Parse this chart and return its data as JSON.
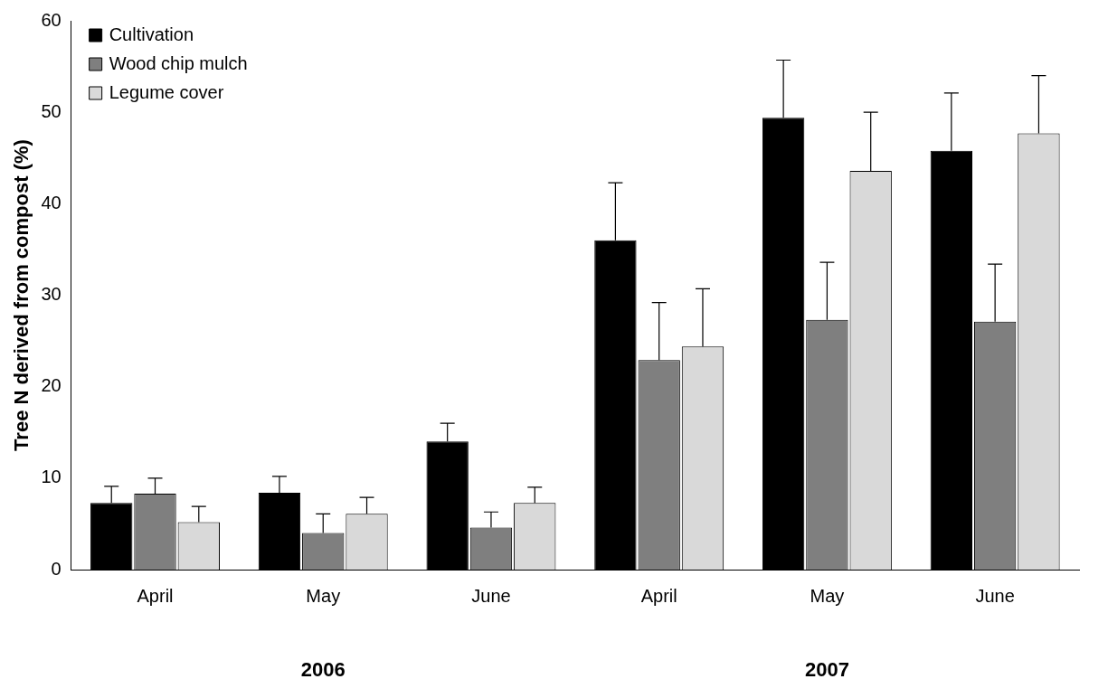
{
  "chart_data": {
    "type": "bar",
    "ylabel": "Tree N derived from compost (%)",
    "categories": [
      "April",
      "May",
      "June",
      "April",
      "May",
      "June"
    ],
    "series": [
      {
        "name": "Cultivation",
        "color": "#000000",
        "values": [
          7.3,
          8.4,
          14.0,
          36.0,
          49.4,
          45.8
        ],
        "errors": [
          [
            7.3,
            9.1
          ],
          [
            8.4,
            10.2
          ],
          [
            14.0,
            16.0
          ],
          [
            36.0,
            42.3
          ],
          [
            49.4,
            55.7
          ],
          [
            45.8,
            52.1
          ]
        ]
      },
      {
        "name": "Wood chip mulch",
        "color": "#7f7f7f",
        "values": [
          8.3,
          4.0,
          4.6,
          22.9,
          27.3,
          27.1
        ],
        "errors": [
          [
            8.3,
            10.0
          ],
          [
            4.0,
            6.1
          ],
          [
            4.6,
            6.3
          ],
          [
            22.9,
            29.2
          ],
          [
            27.3,
            33.6
          ],
          [
            27.1,
            33.4
          ]
        ]
      },
      {
        "name": "Legume cover",
        "color": "#d9d9d9",
        "values": [
          5.2,
          6.1,
          7.3,
          24.4,
          43.6,
          47.7
        ],
        "errors": [
          [
            5.2,
            6.9
          ],
          [
            6.1,
            7.9
          ],
          [
            7.3,
            9.0
          ],
          [
            24.4,
            30.7
          ],
          [
            43.6,
            50.0
          ],
          [
            47.7,
            54.0
          ]
        ]
      }
    ],
    "ylim": [
      0,
      60
    ],
    "yticks": [
      0,
      10,
      20,
      30,
      40,
      50,
      60
    ],
    "grid": false,
    "legend": "top left",
    "annotations": [
      "2006",
      "2007"
    ]
  }
}
